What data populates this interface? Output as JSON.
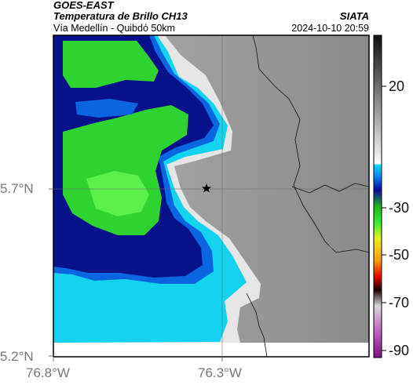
{
  "header": {
    "title_line1": "GOES-EAST",
    "title_line2": "Temperatura de Brillo CH13",
    "subtitle": "Vía Medellín - Quibdó 50km",
    "brand": "SIATA",
    "timestamp": "2024-10-10 20:59"
  },
  "axes": {
    "y_ticks": [
      "5.7°N",
      "5.2°N"
    ],
    "x_ticks": [
      "76.8°W",
      "76.3°W"
    ]
  },
  "colorbar": {
    "tick_labels": [
      "20",
      "-30",
      "-50",
      "-70",
      "-90"
    ]
  },
  "marker": {
    "icon": "star-icon"
  },
  "colors": {
    "green": "#2fd32f",
    "navy": "#07128a",
    "cyan": "#14d3ee",
    "grey": "#a9a9a9"
  }
}
